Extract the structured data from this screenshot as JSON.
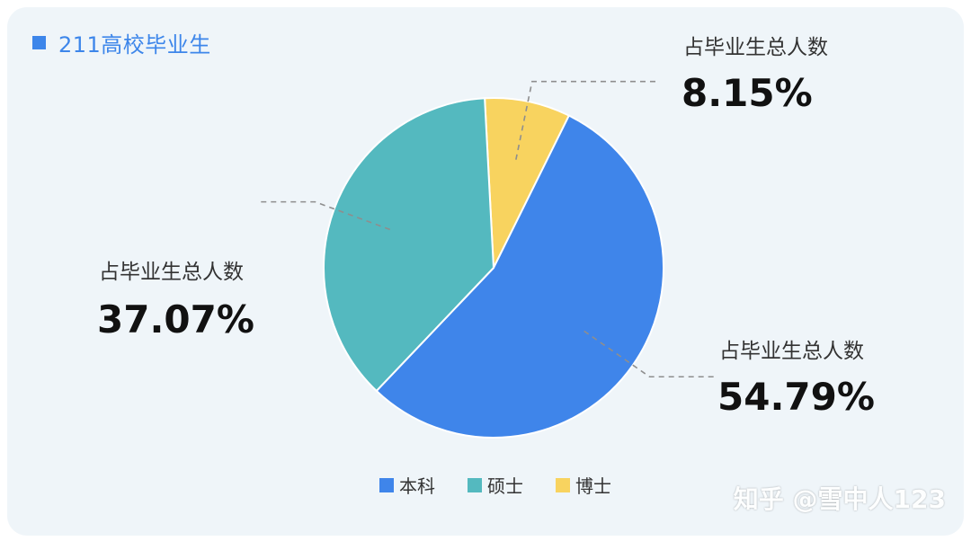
{
  "card_title": "211高校毕业生",
  "watermark": "知乎 @雪中人123",
  "colors": {
    "title": "#3d86ea",
    "bachelor": "#3f85ea",
    "master": "#54b9bf",
    "doctor": "#f8d35f"
  },
  "chart_data": {
    "type": "pie",
    "title": "211高校毕业生",
    "slices": [
      {
        "label": "本科",
        "value": 54.79,
        "value_label": "54.79%",
        "caption": "占毕业生总人数",
        "color": "#3f85ea"
      },
      {
        "label": "硕士",
        "value": 37.07,
        "value_label": "37.07%",
        "caption": "占毕业生总人数",
        "color": "#54b9bf"
      },
      {
        "label": "博士",
        "value": 8.15,
        "value_label": "8.15%",
        "caption": "占毕业生总人数",
        "color": "#f8d35f"
      }
    ],
    "legend": {
      "position": "bottom-center",
      "items": [
        "本科",
        "硕士",
        "博士"
      ]
    }
  }
}
